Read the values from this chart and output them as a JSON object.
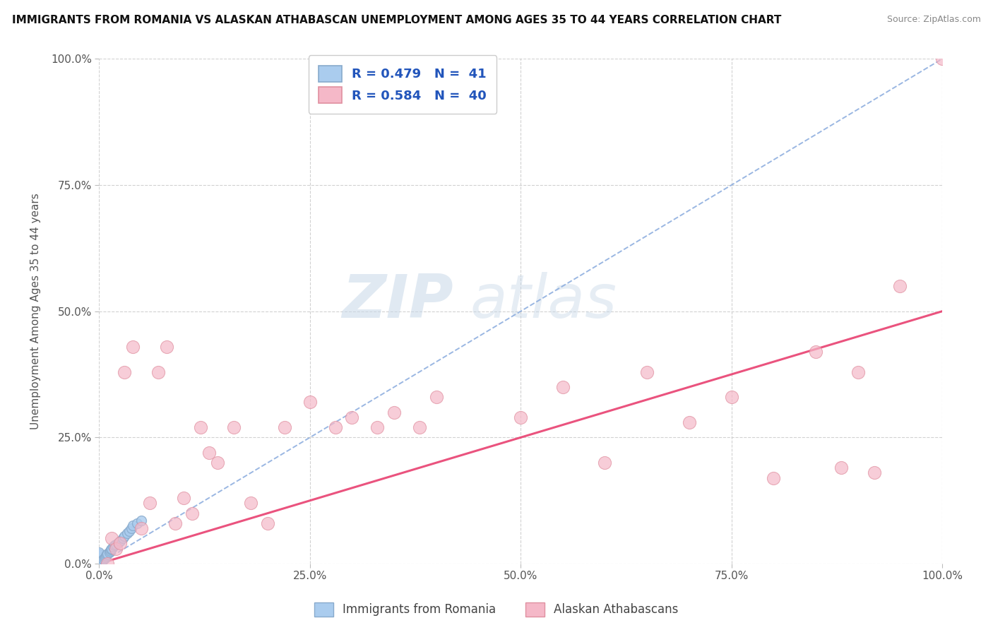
{
  "title": "IMMIGRANTS FROM ROMANIA VS ALASKAN ATHABASCAN UNEMPLOYMENT AMONG AGES 35 TO 44 YEARS CORRELATION CHART",
  "source": "Source: ZipAtlas.com",
  "ylabel": "Unemployment Among Ages 35 to 44 years",
  "xlim": [
    0,
    1.0
  ],
  "ylim": [
    0,
    1.0
  ],
  "xticks": [
    0.0,
    0.25,
    0.5,
    0.75,
    1.0
  ],
  "yticks": [
    0.0,
    0.25,
    0.5,
    0.75,
    1.0
  ],
  "xticklabels": [
    "0.0%",
    "25.0%",
    "50.0%",
    "75.0%",
    "100.0%"
  ],
  "yticklabels": [
    "0.0%",
    "25.0%",
    "50.0%",
    "75.0%",
    "100.0%"
  ],
  "legend_labels": [
    "Immigrants from Romania",
    "Alaskan Athabascans"
  ],
  "blue_color": "#aaccee",
  "blue_edge": "#88aacc",
  "pink_color": "#f5b8c8",
  "pink_edge": "#e090a0",
  "blue_line_color": "#88aadd",
  "pink_line_color": "#e84070",
  "watermark_color": "#d8e8f0",
  "romania_r": 0.479,
  "athabascan_r": 0.584,
  "romania_n": 41,
  "athabascan_n": 40,
  "blue_line_slope": 1.05,
  "blue_line_intercept": 0.0,
  "pink_line_slope": 0.5,
  "pink_line_intercept": 0.0,
  "romania_x": [
    0.0,
    0.0,
    0.0,
    0.0,
    0.0,
    0.0,
    0.0,
    0.0,
    0.0,
    0.0,
    0.0,
    0.0,
    0.0,
    0.0,
    0.0,
    0.0,
    0.003,
    0.003,
    0.005,
    0.006,
    0.007,
    0.008,
    0.009,
    0.01,
    0.012,
    0.013,
    0.014,
    0.015,
    0.016,
    0.018,
    0.02,
    0.022,
    0.025,
    0.028,
    0.03,
    0.033,
    0.036,
    0.038,
    0.04,
    0.045,
    0.05
  ],
  "romania_y": [
    0.0,
    0.0,
    0.0,
    0.0,
    0.0,
    0.0,
    0.0,
    0.0,
    0.005,
    0.008,
    0.01,
    0.012,
    0.015,
    0.018,
    0.02,
    0.022,
    0.0,
    0.005,
    0.008,
    0.01,
    0.012,
    0.015,
    0.018,
    0.02,
    0.022,
    0.025,
    0.028,
    0.03,
    0.033,
    0.036,
    0.038,
    0.04,
    0.045,
    0.05,
    0.055,
    0.06,
    0.065,
    0.07,
    0.075,
    0.08,
    0.085
  ],
  "athabascan_x": [
    0.01,
    0.015,
    0.02,
    0.025,
    0.03,
    0.04,
    0.05,
    0.06,
    0.07,
    0.08,
    0.09,
    0.1,
    0.11,
    0.12,
    0.13,
    0.14,
    0.16,
    0.18,
    0.2,
    0.22,
    0.25,
    0.28,
    0.3,
    0.33,
    0.35,
    0.38,
    0.4,
    0.5,
    0.55,
    0.6,
    0.65,
    0.7,
    0.75,
    0.8,
    0.85,
    0.88,
    0.9,
    0.92,
    0.95,
    1.0
  ],
  "athabascan_y": [
    0.0,
    0.05,
    0.03,
    0.04,
    0.38,
    0.43,
    0.07,
    0.12,
    0.38,
    0.43,
    0.08,
    0.13,
    0.1,
    0.27,
    0.22,
    0.2,
    0.27,
    0.12,
    0.08,
    0.27,
    0.32,
    0.27,
    0.29,
    0.27,
    0.3,
    0.27,
    0.33,
    0.29,
    0.35,
    0.2,
    0.38,
    0.28,
    0.33,
    0.17,
    0.42,
    0.19,
    0.38,
    0.18,
    0.55,
    1.0
  ]
}
